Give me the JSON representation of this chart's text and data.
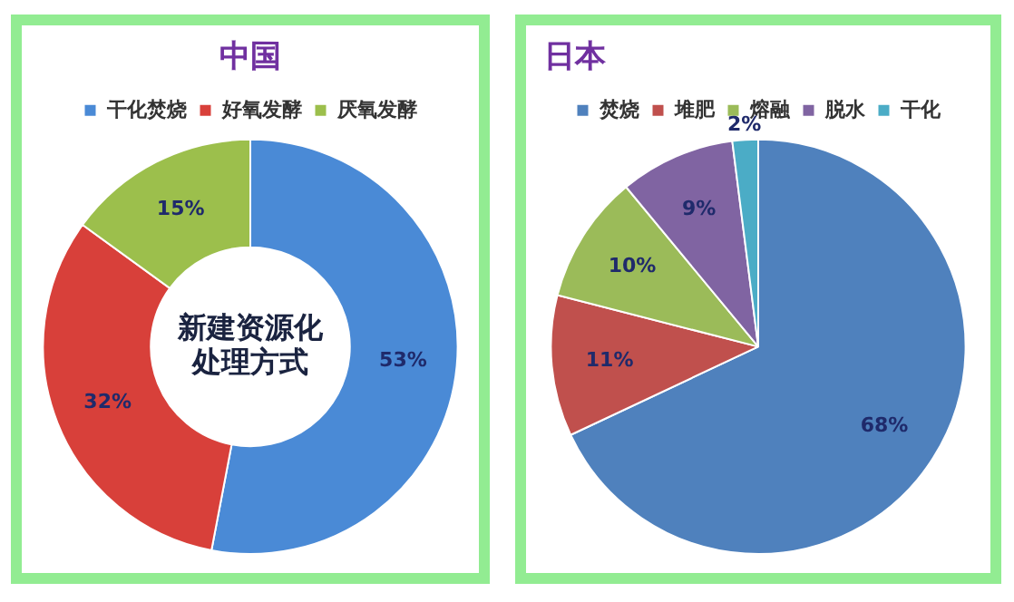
{
  "chart_data": [
    {
      "type": "donut",
      "title": "中国",
      "categories": [
        "干化焚烧",
        "好氧发酵",
        "厌氧发酵"
      ],
      "values": [
        53,
        32,
        15
      ],
      "colors": [
        "#4a8ad6",
        "#d8403a",
        "#9cbf4c"
      ],
      "value_labels": [
        "53%",
        "32%",
        "15%"
      ],
      "legend": "top",
      "annotations": [
        "新建资源化处理方式"
      ]
    },
    {
      "type": "pie",
      "title": "日本",
      "categories": [
        "焚烧",
        "堆肥",
        "熔融",
        "脱水",
        "干化"
      ],
      "values": [
        68,
        11,
        10,
        9,
        2
      ],
      "colors": [
        "#4f81bd",
        "#c0504d",
        "#9bbb59",
        "#8064a2",
        "#4bacc6"
      ],
      "value_labels": [
        "68%",
        "11%",
        "10%",
        "9%",
        "2%"
      ],
      "legend": "top"
    }
  ]
}
